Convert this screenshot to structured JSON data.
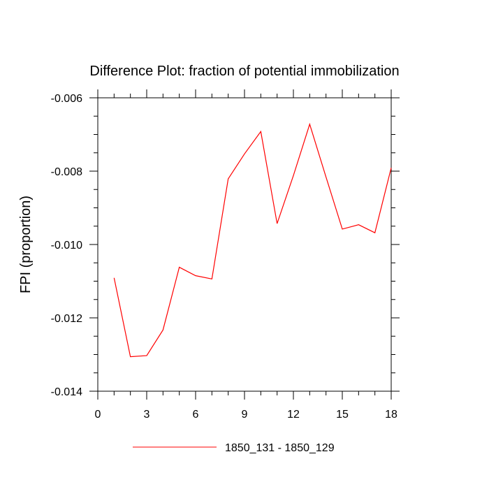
{
  "chart_data": {
    "type": "line",
    "title": "Difference Plot: fraction of potential immobilization",
    "xlabel": "",
    "ylabel": "FPI  (proportion)",
    "xlim": [
      0,
      18
    ],
    "ylim": [
      -0.014,
      -0.006
    ],
    "x_ticks": [
      0,
      3,
      6,
      9,
      12,
      15,
      18
    ],
    "x_tick_labels": [
      "0",
      "3",
      "6",
      "9",
      "12",
      "15",
      "18"
    ],
    "y_ticks": [
      -0.014,
      -0.012,
      -0.01,
      -0.008,
      -0.006
    ],
    "y_tick_labels": [
      "-0.014",
      "-0.012",
      "-0.010",
      "-0.008",
      "-0.006"
    ],
    "grid": false,
    "legend_position": "bottom-center",
    "series": [
      {
        "name": "1850_131 - 1850_129",
        "color": "#ff0000",
        "x": [
          1,
          2,
          3,
          4,
          5,
          6,
          7,
          8,
          9,
          10,
          11,
          12,
          13,
          14,
          15,
          16,
          17,
          18
        ],
        "values": [
          -0.01091,
          -0.01306,
          -0.01303,
          -0.01233,
          -0.01062,
          -0.01085,
          -0.01094,
          -0.00821,
          -0.00753,
          -0.00692,
          -0.00943,
          -0.00812,
          -0.00672,
          -0.00816,
          -0.00958,
          -0.00946,
          -0.00968,
          -0.00791
        ]
      }
    ]
  }
}
